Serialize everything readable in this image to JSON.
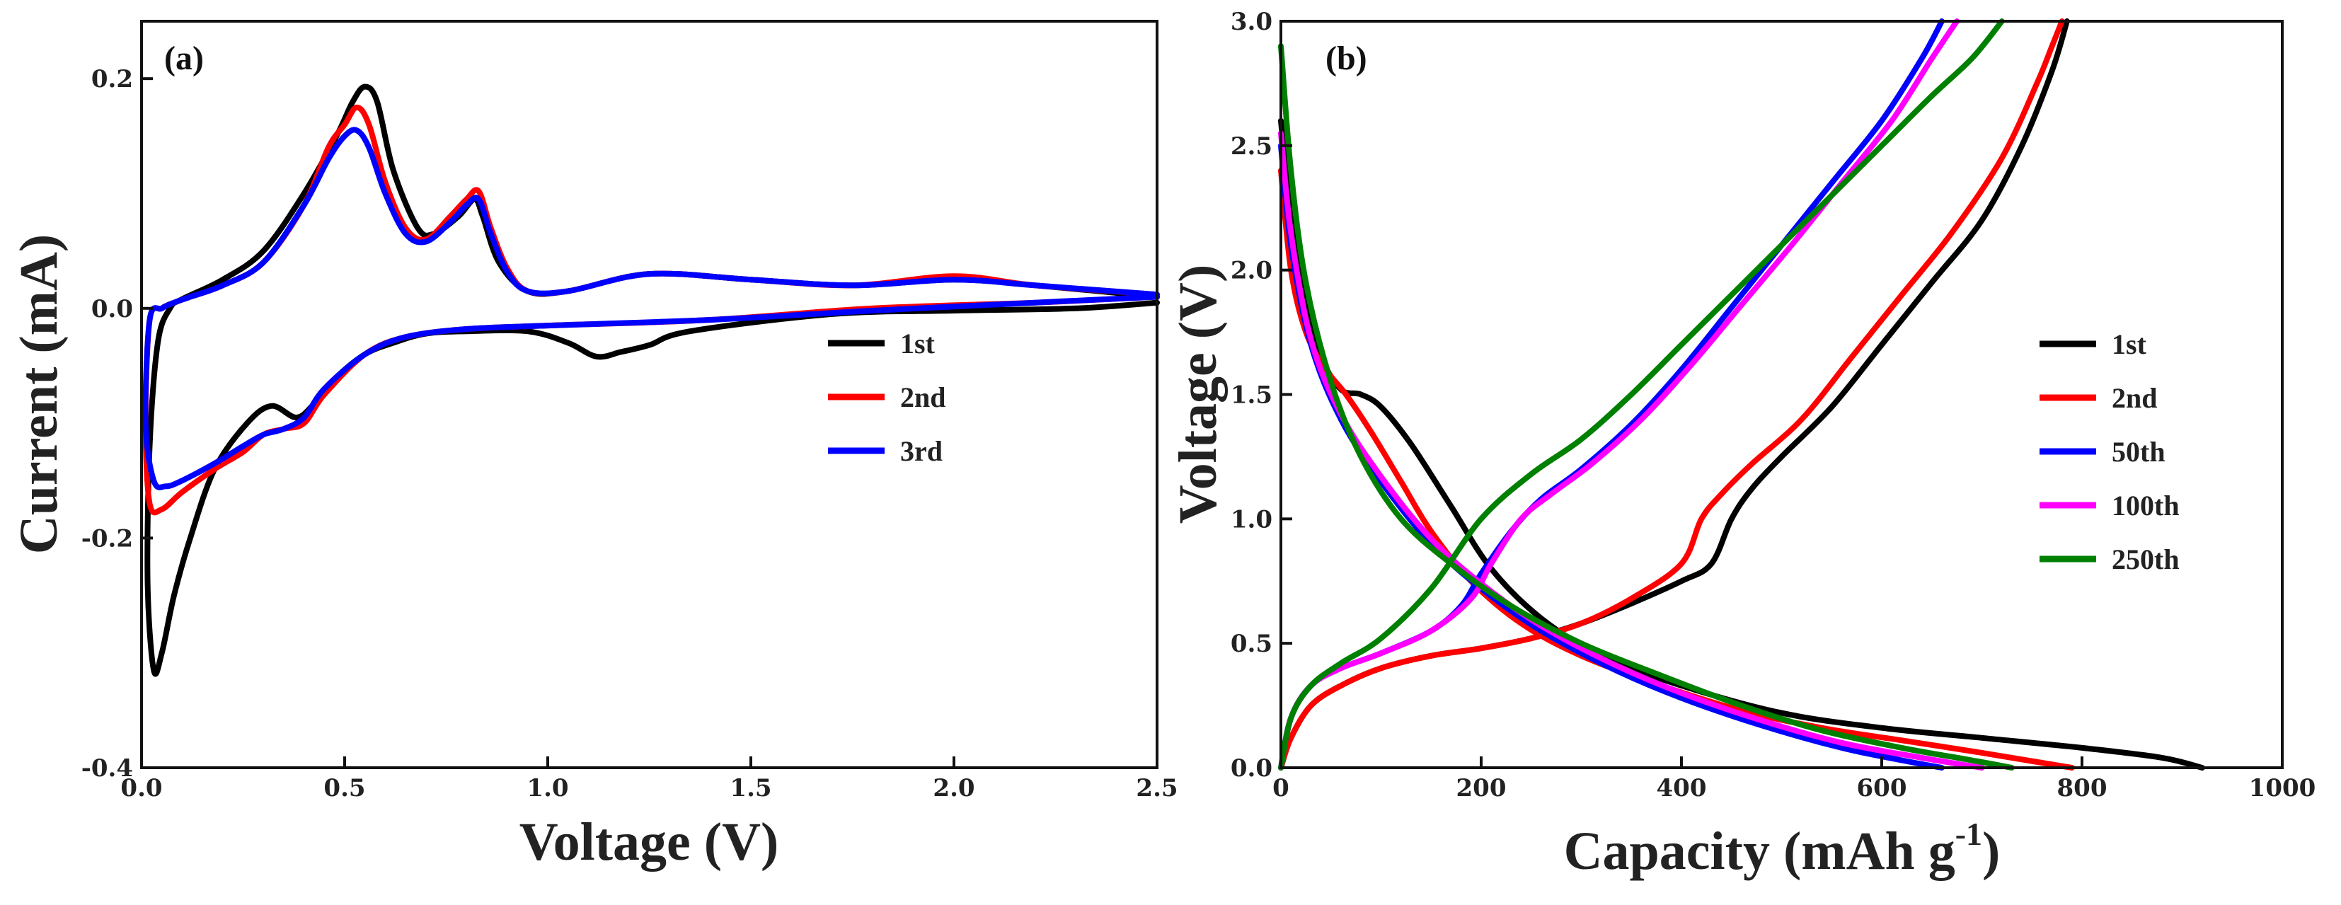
{
  "chart_data": [
    {
      "type": "line",
      "panel_label": "(a)",
      "xlabel": "Voltage (V)",
      "ylabel": "Current (mA)",
      "xlim": [
        0.0,
        2.5
      ],
      "ylim": [
        -0.4,
        0.25
      ],
      "xticks": [
        0.0,
        0.5,
        1.0,
        1.5,
        2.0,
        2.5
      ],
      "xtick_labels": [
        "0.0",
        "0.5",
        "1.0",
        "1.5",
        "2.0",
        "2.5"
      ],
      "yticks": [
        -0.4,
        -0.2,
        0.0,
        0.2
      ],
      "ytick_labels": [
        "-0.4",
        "-0.2",
        "0.0",
        "0.2"
      ],
      "grid": false,
      "legend_position": "center-right",
      "series": [
        {
          "name": "1st",
          "color": "#000000",
          "x": [
            2.5,
            2.3,
            2.0,
            1.7,
            1.35,
            1.25,
            1.18,
            1.12,
            1.05,
            0.95,
            0.8,
            0.7,
            0.62,
            0.55,
            0.48,
            0.42,
            0.38,
            0.32,
            0.26,
            0.18,
            0.12,
            0.08,
            0.05,
            0.03,
            0.015,
            0.02,
            0.04,
            0.07,
            0.1,
            0.2,
            0.3,
            0.4,
            0.48,
            0.52,
            0.55,
            0.58,
            0.62,
            0.68,
            0.72,
            0.78,
            0.82,
            0.84,
            0.88,
            0.95,
            1.05,
            1.25,
            1.5,
            1.75,
            2.0,
            2.2,
            2.5
          ],
          "y": [
            0.005,
            0.0,
            -0.002,
            -0.005,
            -0.02,
            -0.032,
            -0.038,
            -0.042,
            -0.03,
            -0.02,
            -0.02,
            -0.022,
            -0.03,
            -0.04,
            -0.06,
            -0.085,
            -0.095,
            -0.085,
            -0.1,
            -0.14,
            -0.2,
            -0.25,
            -0.3,
            -0.315,
            -0.24,
            -0.12,
            -0.03,
            0.0,
            0.008,
            0.025,
            0.05,
            0.1,
            0.15,
            0.18,
            0.193,
            0.18,
            0.12,
            0.07,
            0.065,
            0.08,
            0.095,
            0.08,
            0.04,
            0.015,
            0.015,
            0.03,
            0.025,
            0.02,
            0.025,
            0.02,
            0.01
          ]
        },
        {
          "name": "2nd",
          "color": "#ff0000",
          "x": [
            2.5,
            2.2,
            1.8,
            1.4,
            1.0,
            0.8,
            0.65,
            0.55,
            0.45,
            0.4,
            0.35,
            0.3,
            0.25,
            0.18,
            0.1,
            0.05,
            0.02,
            0.01,
            0.02,
            0.05,
            0.08,
            0.12,
            0.2,
            0.3,
            0.4,
            0.46,
            0.5,
            0.53,
            0.56,
            0.6,
            0.65,
            0.7,
            0.76,
            0.8,
            0.83,
            0.86,
            0.9,
            0.95,
            1.05,
            1.25,
            1.5,
            1.75,
            2.0,
            2.2,
            2.5
          ],
          "y": [
            0.01,
            0.005,
            0.0,
            -0.01,
            -0.015,
            -0.018,
            -0.025,
            -0.04,
            -0.075,
            -0.1,
            -0.105,
            -0.11,
            -0.125,
            -0.14,
            -0.16,
            -0.175,
            -0.17,
            -0.1,
            -0.01,
            0.0,
            0.005,
            0.01,
            0.02,
            0.04,
            0.09,
            0.14,
            0.16,
            0.175,
            0.16,
            0.11,
            0.07,
            0.06,
            0.08,
            0.095,
            0.102,
            0.07,
            0.035,
            0.015,
            0.015,
            0.03,
            0.025,
            0.02,
            0.028,
            0.02,
            0.012
          ]
        },
        {
          "name": "3rd",
          "color": "#0000ff",
          "x": [
            2.5,
            2.2,
            1.8,
            1.4,
            1.0,
            0.8,
            0.65,
            0.55,
            0.45,
            0.4,
            0.35,
            0.3,
            0.25,
            0.18,
            0.1,
            0.06,
            0.03,
            0.01,
            0.02,
            0.05,
            0.08,
            0.12,
            0.2,
            0.3,
            0.4,
            0.46,
            0.5,
            0.53,
            0.56,
            0.6,
            0.65,
            0.7,
            0.76,
            0.8,
            0.83,
            0.86,
            0.9,
            0.95,
            1.05,
            1.25,
            1.5,
            1.75,
            2.0,
            2.2,
            2.5
          ],
          "y": [
            0.01,
            0.005,
            -0.002,
            -0.01,
            -0.015,
            -0.018,
            -0.025,
            -0.04,
            -0.07,
            -0.095,
            -0.105,
            -0.11,
            -0.12,
            -0.135,
            -0.15,
            -0.155,
            -0.15,
            -0.1,
            -0.01,
            0.0,
            0.005,
            0.01,
            0.02,
            0.04,
            0.09,
            0.13,
            0.15,
            0.155,
            0.14,
            0.1,
            0.065,
            0.058,
            0.075,
            0.09,
            0.095,
            0.065,
            0.032,
            0.015,
            0.015,
            0.03,
            0.025,
            0.02,
            0.025,
            0.02,
            0.012
          ]
        }
      ]
    },
    {
      "type": "line",
      "panel_label": "(b)",
      "xlabel": "Capacity (mAh g",
      "xlabel_superscript": "-1",
      "xlabel_suffix": ")",
      "ylabel": "Voltage (V)",
      "xlim": [
        0,
        1000
      ],
      "ylim": [
        0.0,
        3.0
      ],
      "xticks": [
        0,
        200,
        400,
        600,
        800,
        1000
      ],
      "xtick_labels": [
        "0",
        "200",
        "400",
        "600",
        "800",
        "1000"
      ],
      "yticks": [
        0.0,
        0.5,
        1.0,
        1.5,
        2.0,
        2.5,
        3.0
      ],
      "ytick_labels": [
        "0.0",
        "0.5",
        "1.0",
        "1.5",
        "2.0",
        "2.5",
        "3.0"
      ],
      "grid": false,
      "legend_position": "center-right",
      "series": [
        {
          "name": "1st",
          "color": "#000000",
          "discharge": {
            "x": [
              0,
              10,
              25,
              40,
              60,
              80,
              100,
              130,
              170,
              210,
              260,
              320,
              400,
              500,
              600,
              700,
              800,
              880,
              920
            ],
            "y": [
              2.6,
              2.2,
              1.85,
              1.65,
              1.52,
              1.5,
              1.45,
              1.3,
              1.05,
              0.8,
              0.6,
              0.45,
              0.33,
              0.22,
              0.16,
              0.12,
              0.08,
              0.04,
              0.0
            ]
          },
          "charge": {
            "x": [
              0,
              10,
              30,
              60,
              100,
              150,
              200,
              250,
              300,
              350,
              400,
              430,
              450,
              470,
              500,
              550,
              600,
              650,
              700,
              740,
              770,
              785
            ],
            "y": [
              0.0,
              0.12,
              0.25,
              0.33,
              0.4,
              0.45,
              0.48,
              0.52,
              0.58,
              0.66,
              0.75,
              0.82,
              1.0,
              1.12,
              1.25,
              1.45,
              1.7,
              1.95,
              2.2,
              2.5,
              2.8,
              3.0
            ]
          }
        },
        {
          "name": "2nd",
          "color": "#ff0000",
          "discharge": {
            "x": [
              0,
              10,
              25,
              45,
              65,
              90,
              120,
              150,
              190,
              240,
              300,
              380,
              460,
              540,
              620,
              700,
              760,
              790
            ],
            "y": [
              2.4,
              2.0,
              1.75,
              1.6,
              1.5,
              1.35,
              1.15,
              0.95,
              0.75,
              0.58,
              0.45,
              0.33,
              0.23,
              0.16,
              0.11,
              0.06,
              0.02,
              0.0
            ]
          },
          "charge": {
            "x": [
              0,
              10,
              30,
              60,
              100,
              150,
              200,
              250,
              300,
              350,
              400,
              420,
              440,
              470,
              520,
              570,
              620,
              670,
              720,
              755,
              770,
              780
            ],
            "y": [
              0.0,
              0.12,
              0.25,
              0.33,
              0.4,
              0.45,
              0.48,
              0.52,
              0.58,
              0.68,
              0.82,
              1.0,
              1.1,
              1.22,
              1.4,
              1.65,
              1.9,
              2.15,
              2.45,
              2.75,
              2.9,
              3.0
            ]
          }
        },
        {
          "name": "50th",
          "color": "#0000ff",
          "discharge": {
            "x": [
              0,
              10,
              30,
              60,
              100,
              150,
              200,
              260,
              330,
              400,
              480,
              560,
              620,
              660
            ],
            "y": [
              2.5,
              2.1,
              1.7,
              1.4,
              1.15,
              0.9,
              0.72,
              0.55,
              0.4,
              0.28,
              0.17,
              0.08,
              0.03,
              0.0
            ]
          },
          "charge": {
            "x": [
              0,
              10,
              30,
              60,
              100,
              150,
              180,
              200,
              230,
              260,
              300,
              350,
              400,
              450,
              500,
              550,
              600,
              640,
              660
            ],
            "y": [
              0.0,
              0.2,
              0.33,
              0.4,
              0.46,
              0.55,
              0.65,
              0.78,
              0.95,
              1.08,
              1.2,
              1.38,
              1.6,
              1.85,
              2.1,
              2.35,
              2.6,
              2.85,
              3.0
            ]
          }
        },
        {
          "name": "100th",
          "color": "#ff00ff",
          "discharge": {
            "x": [
              0,
              10,
              30,
              60,
              100,
              150,
              200,
              260,
              330,
              400,
              480,
              560,
              640,
              700
            ],
            "y": [
              2.55,
              2.15,
              1.72,
              1.42,
              1.17,
              0.92,
              0.74,
              0.57,
              0.42,
              0.3,
              0.19,
              0.1,
              0.04,
              0.0
            ]
          },
          "charge": {
            "x": [
              0,
              10,
              30,
              60,
              100,
              150,
              190,
              210,
              240,
              270,
              310,
              360,
              410,
              460,
              510,
              560,
              610,
              650,
              675
            ],
            "y": [
              0.0,
              0.2,
              0.33,
              0.4,
              0.46,
              0.55,
              0.68,
              0.82,
              1.0,
              1.1,
              1.22,
              1.4,
              1.62,
              1.86,
              2.1,
              2.35,
              2.6,
              2.85,
              3.0
            ]
          }
        },
        {
          "name": "250th",
          "color": "#008000",
          "discharge": {
            "x": [
              0,
              10,
              25,
              50,
              80,
              120,
              170,
              230,
              300,
              380,
              460,
              540,
              620,
              690,
              730
            ],
            "y": [
              2.9,
              2.4,
              1.95,
              1.55,
              1.25,
              1.0,
              0.82,
              0.65,
              0.5,
              0.37,
              0.25,
              0.15,
              0.08,
              0.03,
              0.0
            ]
          },
          "charge": {
            "x": [
              0,
              10,
              30,
              60,
              100,
              150,
              200,
              250,
              300,
              350,
              400,
              450,
              500,
              550,
              600,
              650,
              690,
              720
            ],
            "y": [
              0.0,
              0.2,
              0.33,
              0.42,
              0.52,
              0.72,
              1.0,
              1.18,
              1.32,
              1.5,
              1.7,
              1.9,
              2.1,
              2.3,
              2.5,
              2.7,
              2.85,
              3.0
            ]
          }
        }
      ]
    }
  ]
}
